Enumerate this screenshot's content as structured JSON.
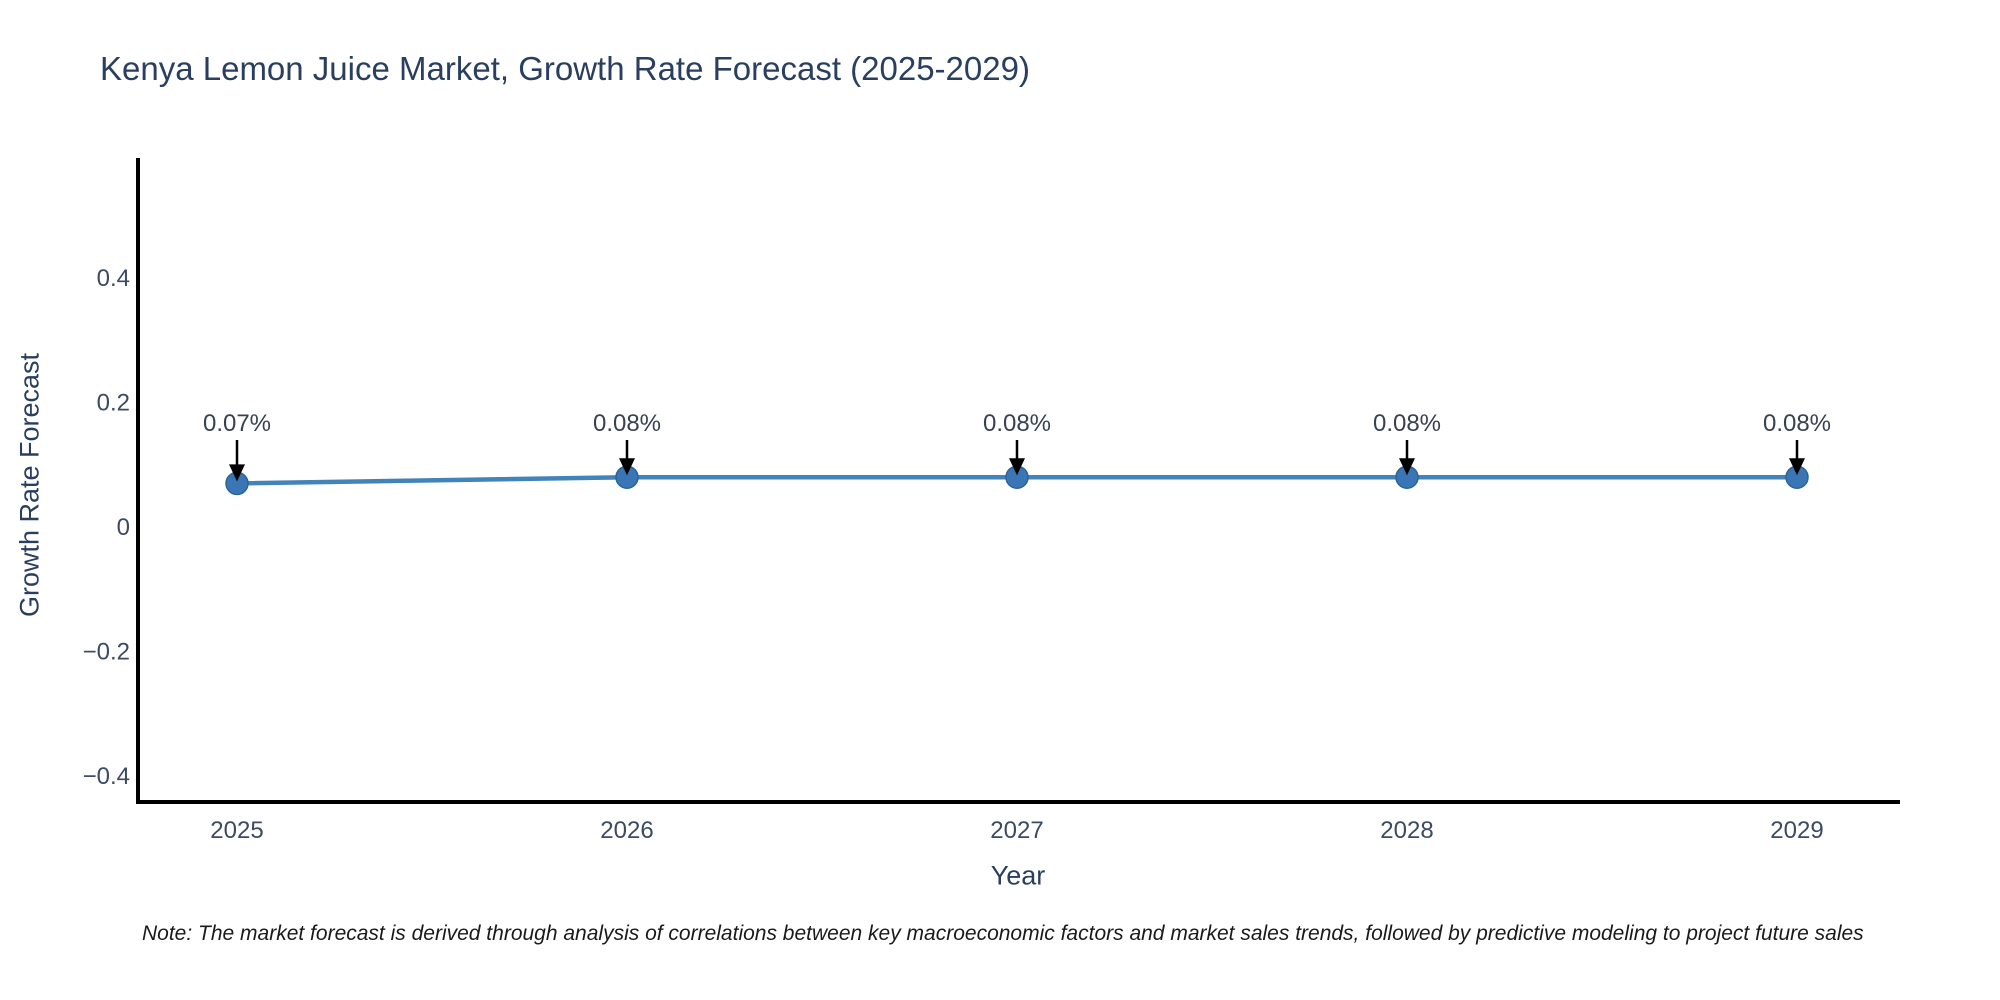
{
  "chart_data": {
    "type": "line",
    "title": "Kenya Lemon Juice Market, Growth Rate Forecast (2025-2029)",
    "xlabel": "Year",
    "ylabel": "Growth Rate Forecast",
    "x": [
      2025,
      2026,
      2027,
      2028,
      2029
    ],
    "x_tick_labels": [
      "2025",
      "2026",
      "2027",
      "2028",
      "2029"
    ],
    "series": [
      {
        "name": "Growth Rate Forecast",
        "values": [
          0.07,
          0.08,
          0.08,
          0.08,
          0.08
        ]
      }
    ],
    "point_labels": [
      "0.07%",
      "0.08%",
      "0.08%",
      "0.08%",
      "0.08%"
    ],
    "y_ticks": [
      0.4,
      0.2,
      0,
      -0.2,
      -0.4
    ],
    "y_tick_labels": [
      "0.4",
      "0.2",
      "0",
      "−0.2",
      "−0.4"
    ],
    "ylim": [
      -0.44,
      0.59
    ],
    "xlim": [
      2024.75,
      2029.26
    ],
    "grid": false,
    "legend": "none",
    "footnote": "Note: The market forecast is derived through analysis of correlations between key macroeconomic factors and market sales trends, followed by predictive modeling to project future sales",
    "colors": {
      "background": "#ffffff",
      "line": "#4283b8",
      "marker": "#3a76b5",
      "marker_edge": "#2e6399",
      "axis": "#000000",
      "arrow": "#000000",
      "title_text": "#2a3f5f",
      "tick_text": "#3c4a63",
      "annotation_text": "#374151",
      "note_text": "#1a1a1a"
    }
  }
}
